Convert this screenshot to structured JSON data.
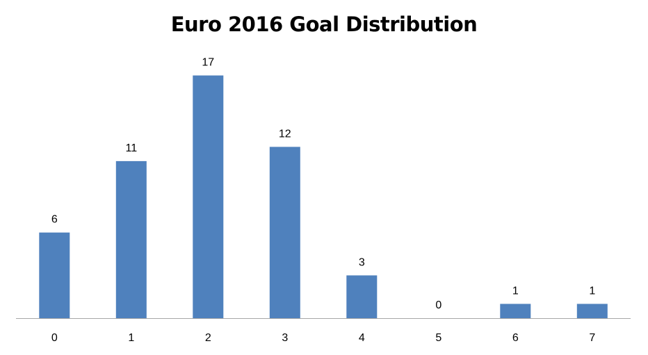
{
  "chart_data": {
    "type": "bar",
    "title": "Euro 2016 Goal Distribution",
    "xlabel": "",
    "ylabel": "",
    "categories": [
      "0",
      "1",
      "2",
      "3",
      "4",
      "5",
      "6",
      "7"
    ],
    "values": [
      6,
      11,
      17,
      12,
      3,
      0,
      1,
      1
    ],
    "data_labels": [
      "6",
      "11",
      "17",
      "12",
      "3",
      "0",
      "1",
      "1"
    ],
    "ylim": [
      0,
      18
    ],
    "grid": false,
    "legend": "none",
    "bar_color": "#4F81BD",
    "axis_color": "#A6A6A6",
    "text_color": "#000000"
  }
}
